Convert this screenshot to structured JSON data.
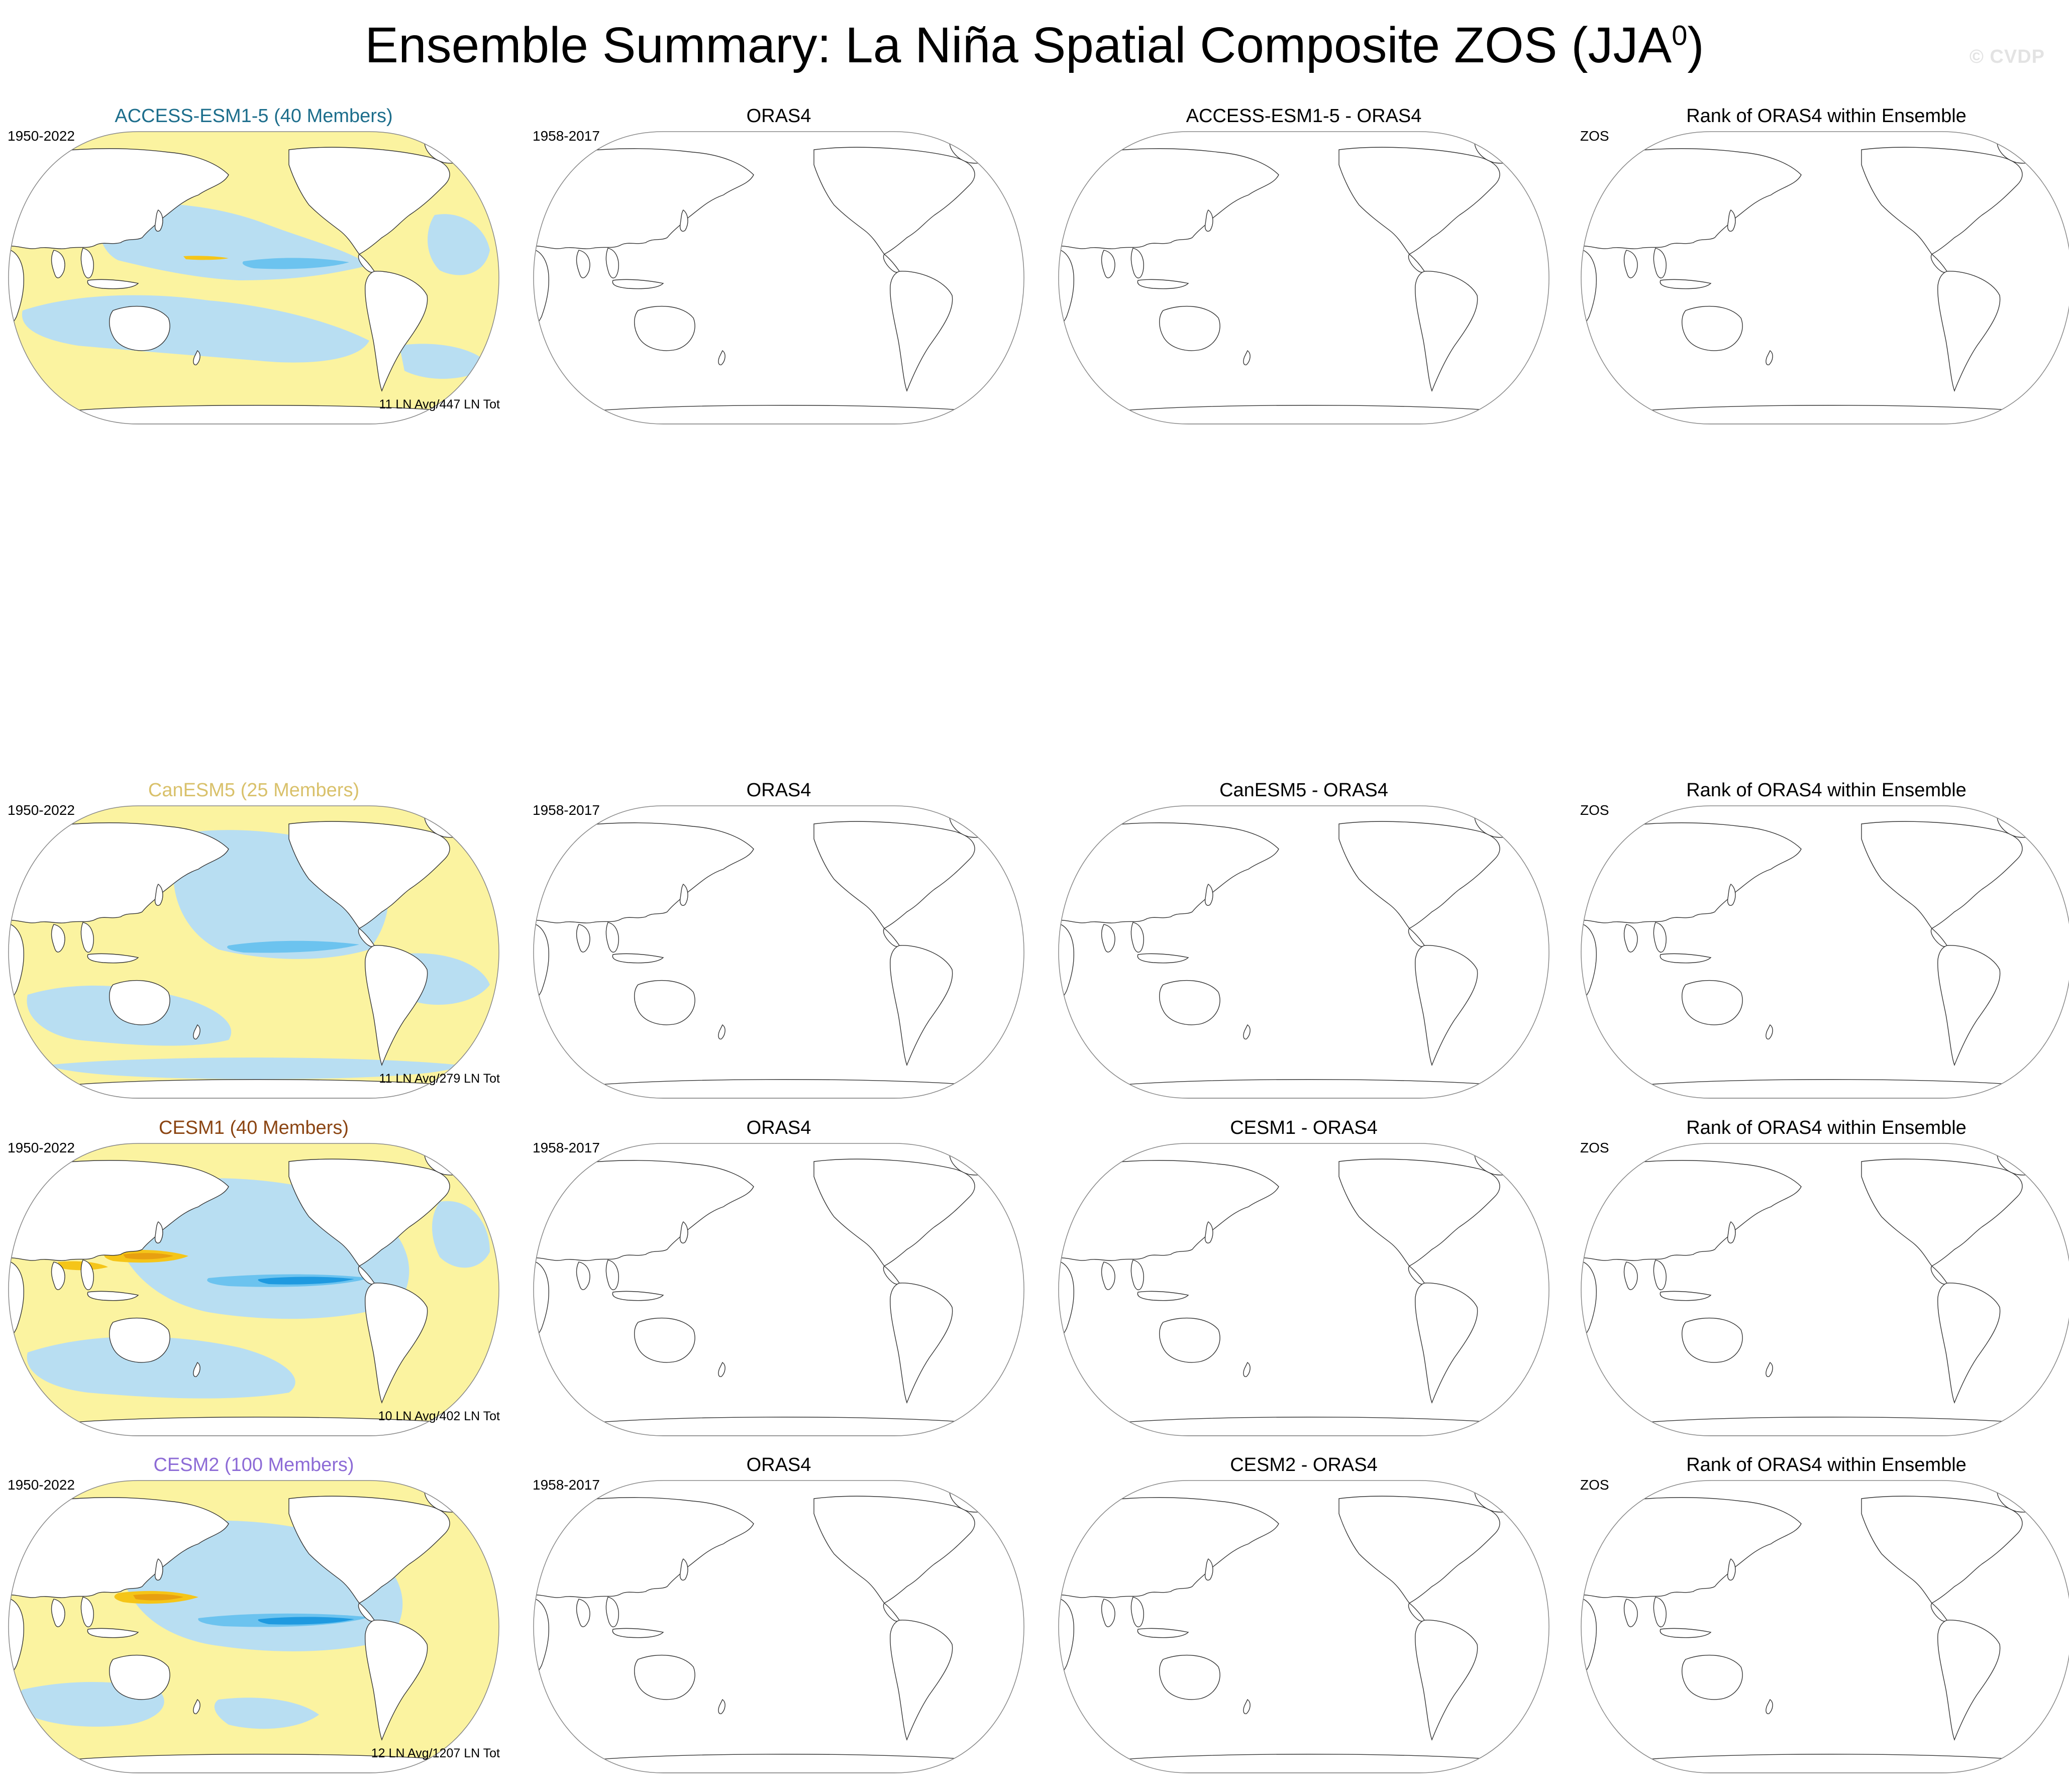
{
  "page": {
    "title_main": "Ensemble Summary: La Niña Spatial Composite ZOS (JJA",
    "title_sup": "0",
    "title_end": ")",
    "watermark": "© CVDP"
  },
  "colors": {
    "positive_light": "#fbf3a0",
    "positive_mid": "#f5c518",
    "positive_strong": "#e8a010",
    "negative_light": "#b8def2",
    "negative_mid": "#6cc3ef",
    "negative_strong": "#1f9ae0",
    "land": "#ffffff",
    "coast": "#333333"
  },
  "rows": [
    {
      "model": {
        "title": "ACCESS-ESM1-5 (40 Members)",
        "title_color": "#1d6e8c",
        "period": "1950-2022",
        "count": "11 LN Avg/447 LN Tot"
      },
      "obs": {
        "title": "ORAS4",
        "period": "1958-2017"
      },
      "diff": {
        "title": "ACCESS-ESM1-5 - ORAS4",
        "period": ""
      },
      "rank": {
        "title": "Rank of ORAS4 within Ensemble",
        "period": "ZOS"
      }
    },
    {
      "model": {
        "title": "CanESM5 (25 Members)",
        "title_color": "#d9c16b",
        "period": "1950-2022",
        "count": "11 LN Avg/279 LN Tot"
      },
      "obs": {
        "title": "ORAS4",
        "period": "1958-2017"
      },
      "diff": {
        "title": "CanESM5 - ORAS4",
        "period": ""
      },
      "rank": {
        "title": "Rank of ORAS4 within Ensemble",
        "period": "ZOS"
      }
    },
    {
      "model": {
        "title": "CESM1 (40 Members)",
        "title_color": "#8b4513",
        "period": "1950-2022",
        "count": "10 LN Avg/402 LN Tot"
      },
      "obs": {
        "title": "ORAS4",
        "period": "1958-2017"
      },
      "diff": {
        "title": "CESM1 - ORAS4",
        "period": ""
      },
      "rank": {
        "title": "Rank of ORAS4 within Ensemble",
        "period": "ZOS"
      }
    },
    {
      "model": {
        "title": "CESM2 (100 Members)",
        "title_color": "#8d6bd6",
        "period": "1950-2022",
        "count": "12 LN Avg/1207 LN Tot"
      },
      "obs": {
        "title": "ORAS4",
        "period": "1958-2017"
      },
      "diff": {
        "title": "CESM2 - ORAS4",
        "period": ""
      },
      "rank": {
        "title": "Rank of ORAS4 within Ensemble",
        "period": "ZOS"
      }
    }
  ]
}
